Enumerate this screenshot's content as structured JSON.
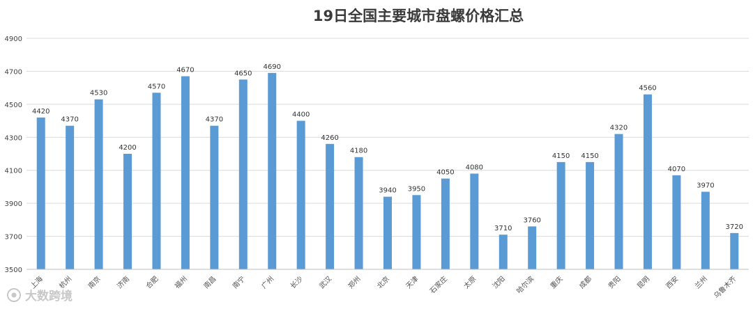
{
  "chart_data": {
    "type": "bar",
    "title": "19日全国主要城市盘螺价格汇总",
    "xlabel": "",
    "ylabel": "",
    "ylim": [
      3500,
      4900
    ],
    "yticks": [
      3500,
      3700,
      3900,
      4100,
      4300,
      4500,
      4700,
      4900
    ],
    "grid": true,
    "bar_color": "#5b9bd5",
    "categories": [
      "上海",
      "杭州",
      "南京",
      "济南",
      "合肥",
      "福州",
      "南昌",
      "南宁",
      "广州",
      "长沙",
      "武汉",
      "郑州",
      "北京",
      "天津",
      "石家庄",
      "太原",
      "沈阳",
      "哈尔滨",
      "重庆",
      "成都",
      "贵阳",
      "昆明",
      "西安",
      "兰州",
      "乌鲁木齐"
    ],
    "values": [
      4420,
      4370,
      4530,
      4200,
      4570,
      4670,
      4370,
      4650,
      4690,
      4400,
      4260,
      4180,
      3940,
      3950,
      4050,
      4080,
      3710,
      3760,
      4150,
      4150,
      4320,
      4560,
      4070,
      3970,
      3720
    ]
  },
  "watermark": {
    "text": "大数跨境",
    "icon": "camera-logo-icon"
  }
}
